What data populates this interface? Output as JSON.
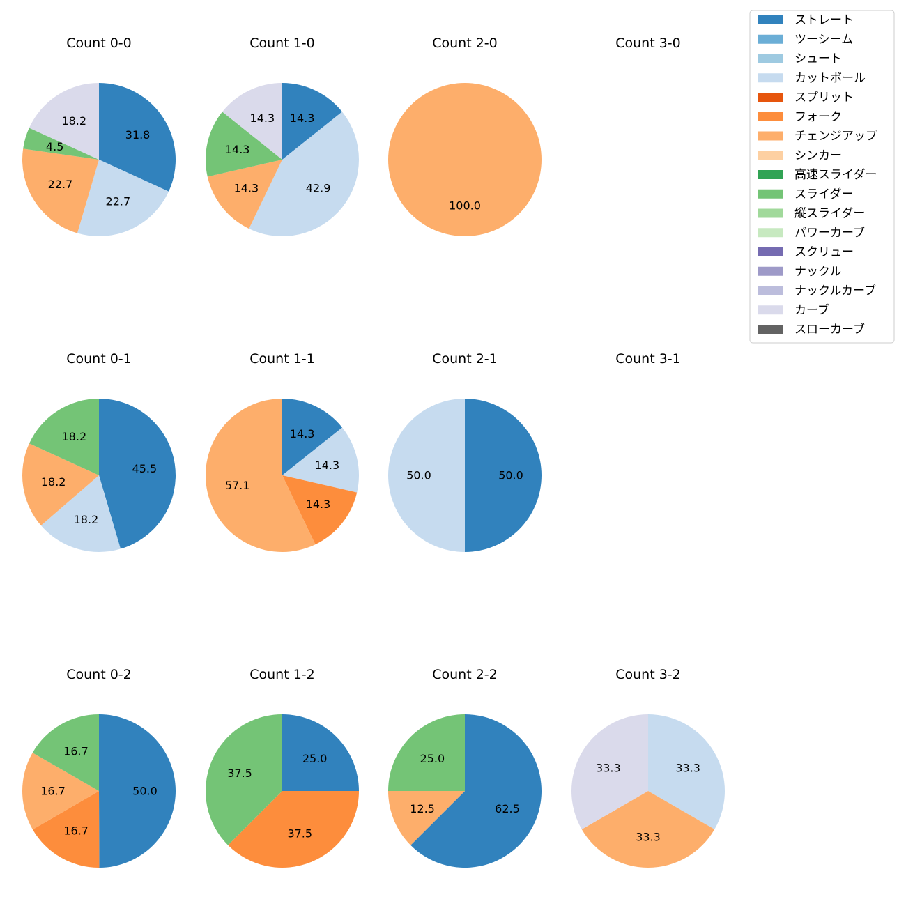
{
  "legend": {
    "items": [
      {
        "label": "ストレート",
        "color": "#3182bd"
      },
      {
        "label": "ツーシーム",
        "color": "#6baed6"
      },
      {
        "label": "シュート",
        "color": "#9ecae1"
      },
      {
        "label": "カットボール",
        "color": "#c6dbef"
      },
      {
        "label": "スプリット",
        "color": "#e6550d"
      },
      {
        "label": "フォーク",
        "color": "#fd8d3c"
      },
      {
        "label": "チェンジアップ",
        "color": "#fdae6b"
      },
      {
        "label": "シンカー",
        "color": "#fdd0a2"
      },
      {
        "label": "高速スライダー",
        "color": "#31a354"
      },
      {
        "label": "スライダー",
        "color": "#74c476"
      },
      {
        "label": "縦スライダー",
        "color": "#a1d99b"
      },
      {
        "label": "パワーカーブ",
        "color": "#c7e9c0"
      },
      {
        "label": "スクリュー",
        "color": "#756bb1"
      },
      {
        "label": "ナックル",
        "color": "#9e9ac8"
      },
      {
        "label": "ナックルカーブ",
        "color": "#bcbddc"
      },
      {
        "label": "カーブ",
        "color": "#dadaeb"
      },
      {
        "label": "スローカーブ",
        "color": "#636363"
      }
    ]
  },
  "chart_data": [
    {
      "type": "pie",
      "title": "Count 0-0",
      "slices": [
        {
          "category": "ストレート",
          "value": 31.8
        },
        {
          "category": "カットボール",
          "value": 22.7
        },
        {
          "category": "チェンジアップ",
          "value": 22.7
        },
        {
          "category": "スライダー",
          "value": 4.5
        },
        {
          "category": "カーブ",
          "value": 18.2
        }
      ]
    },
    {
      "type": "pie",
      "title": "Count 1-0",
      "slices": [
        {
          "category": "ストレート",
          "value": 14.3
        },
        {
          "category": "カットボール",
          "value": 42.9
        },
        {
          "category": "チェンジアップ",
          "value": 14.3
        },
        {
          "category": "スライダー",
          "value": 14.3
        },
        {
          "category": "カーブ",
          "value": 14.3
        }
      ]
    },
    {
      "type": "pie",
      "title": "Count 2-0",
      "slices": [
        {
          "category": "チェンジアップ",
          "value": 100.0
        }
      ]
    },
    {
      "type": "pie",
      "title": "Count 3-0",
      "slices": []
    },
    {
      "type": "pie",
      "title": "Count 0-1",
      "slices": [
        {
          "category": "ストレート",
          "value": 45.5
        },
        {
          "category": "カットボール",
          "value": 18.2
        },
        {
          "category": "チェンジアップ",
          "value": 18.2
        },
        {
          "category": "スライダー",
          "value": 18.2
        }
      ]
    },
    {
      "type": "pie",
      "title": "Count 1-1",
      "slices": [
        {
          "category": "ストレート",
          "value": 14.3
        },
        {
          "category": "カットボール",
          "value": 14.3
        },
        {
          "category": "フォーク",
          "value": 14.3
        },
        {
          "category": "チェンジアップ",
          "value": 57.1
        }
      ]
    },
    {
      "type": "pie",
      "title": "Count 2-1",
      "slices": [
        {
          "category": "ストレート",
          "value": 50.0
        },
        {
          "category": "カットボール",
          "value": 50.0
        }
      ]
    },
    {
      "type": "pie",
      "title": "Count 3-1",
      "slices": []
    },
    {
      "type": "pie",
      "title": "Count 0-2",
      "slices": [
        {
          "category": "ストレート",
          "value": 50.0
        },
        {
          "category": "フォーク",
          "value": 16.7
        },
        {
          "category": "チェンジアップ",
          "value": 16.7
        },
        {
          "category": "スライダー",
          "value": 16.7
        }
      ]
    },
    {
      "type": "pie",
      "title": "Count 1-2",
      "slices": [
        {
          "category": "ストレート",
          "value": 25.0
        },
        {
          "category": "フォーク",
          "value": 37.5
        },
        {
          "category": "スライダー",
          "value": 37.5
        }
      ]
    },
    {
      "type": "pie",
      "title": "Count 2-2",
      "slices": [
        {
          "category": "ストレート",
          "value": 62.5
        },
        {
          "category": "チェンジアップ",
          "value": 12.5
        },
        {
          "category": "スライダー",
          "value": 25.0
        }
      ]
    },
    {
      "type": "pie",
      "title": "Count 3-2",
      "slices": [
        {
          "category": "カットボール",
          "value": 33.3
        },
        {
          "category": "チェンジアップ",
          "value": 33.3
        },
        {
          "category": "カーブ",
          "value": 33.3
        }
      ]
    }
  ]
}
